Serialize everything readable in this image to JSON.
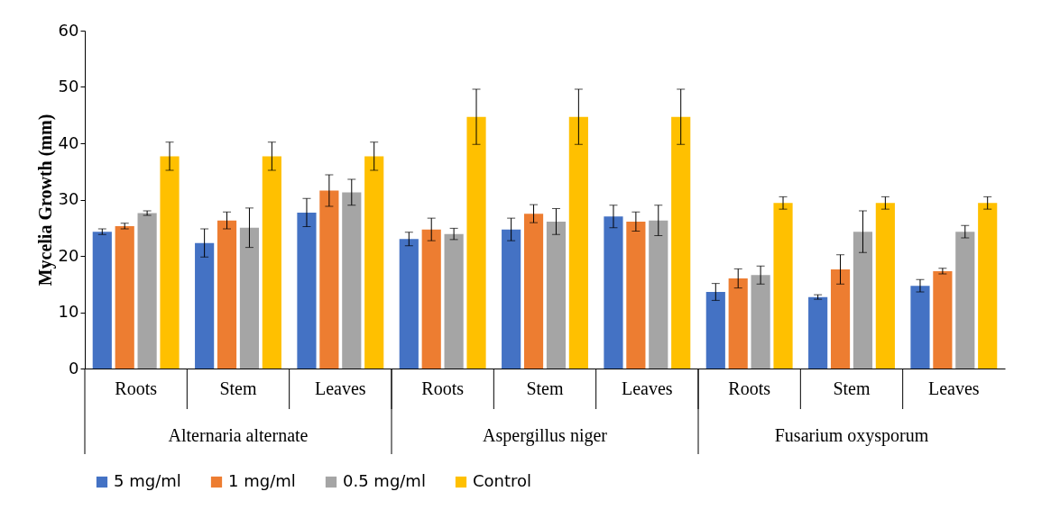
{
  "chart_data": {
    "type": "bar",
    "ylabel": "Mycelia Growth (mm)",
    "categories": [
      "Roots",
      "Stem",
      "Leaves",
      "Roots",
      "Stem",
      "Leaves",
      "Roots",
      "Stem",
      "Leaves"
    ],
    "annotations": [
      "Alternaria alternate",
      "Aspergillus niger",
      "Fusarium oxysporum"
    ],
    "series": [
      {
        "name": "5 mg/ml",
        "color": "#4472c4",
        "values": [
          24.3,
          22.3,
          27.7,
          23.0,
          24.7,
          27.0,
          13.6,
          12.7,
          14.7
        ],
        "errors": [
          0.5,
          2.5,
          2.5,
          1.2,
          2.0,
          2.0,
          1.5,
          0.4,
          1.1
        ]
      },
      {
        "name": "1 mg/ml",
        "color": "#ed7d31",
        "values": [
          25.3,
          26.3,
          31.6,
          24.7,
          27.5,
          26.1,
          16.0,
          17.6,
          17.3
        ],
        "errors": [
          0.5,
          1.5,
          2.8,
          2.0,
          1.6,
          1.7,
          1.7,
          2.6,
          0.5
        ]
      },
      {
        "name": "0.5 mg/ml",
        "color": "#a5a5a5",
        "values": [
          27.6,
          25.0,
          31.3,
          23.9,
          26.1,
          26.3,
          16.6,
          24.3,
          24.3
        ],
        "errors": [
          0.4,
          3.5,
          2.3,
          1.0,
          2.3,
          2.7,
          1.6,
          3.7,
          1.1
        ]
      },
      {
        "name": "Control",
        "color": "#ffc000",
        "values": [
          37.7,
          37.7,
          37.7,
          44.7,
          44.7,
          44.7,
          29.4,
          29.4,
          29.4
        ],
        "errors": [
          2.5,
          2.5,
          2.5,
          4.9,
          4.9,
          4.9,
          1.1,
          1.1,
          1.1
        ]
      }
    ],
    "ylim": [
      0,
      60
    ],
    "yticks": [
      0,
      10,
      20,
      30,
      40,
      50,
      60
    ],
    "grid": false,
    "legend": "bottom"
  }
}
